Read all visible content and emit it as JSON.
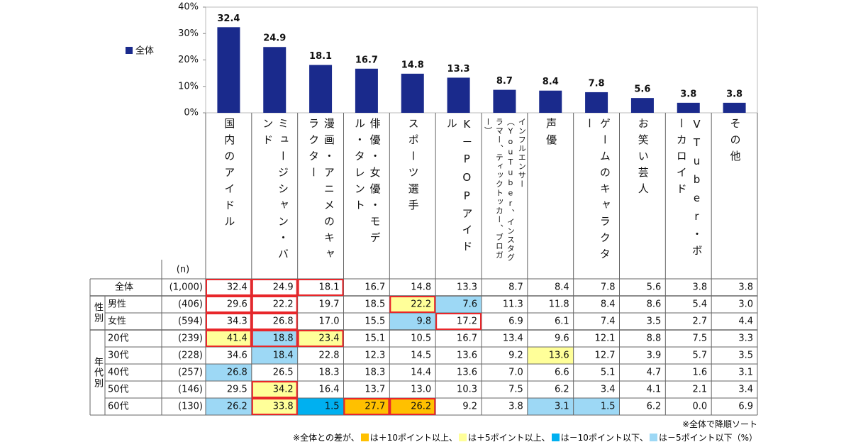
{
  "chart_data": {
    "type": "bar",
    "categories": [
      "国内のアイドル",
      "ミュージシャン・バンド",
      "漫画・アニメのキャラクター",
      "俳優・女優・モデル・タレント",
      "スポーツ選手",
      "K－POPアイドル",
      "インフルエンサー（YouTuber、インスタグラマー、ティックトッカー、ブロガー）",
      "声優",
      "ゲームのキャラクター",
      "お笑い芸人",
      "VTuber・ボーカロイド",
      "その他"
    ],
    "series": [
      {
        "name": "全体",
        "color": "#1a2a8c",
        "values": [
          32.4,
          24.9,
          18.1,
          16.7,
          14.8,
          13.3,
          8.7,
          8.4,
          7.8,
          5.6,
          3.8,
          3.8
        ]
      }
    ],
    "ylim": [
      0,
      40
    ],
    "yticks": [
      {
        "value": 0,
        "label": "0%"
      },
      {
        "value": 10,
        "label": "10%"
      },
      {
        "value": 20,
        "label": "20%"
      },
      {
        "value": 30,
        "label": "30%"
      },
      {
        "value": 40,
        "label": "40%"
      }
    ],
    "legend": "left"
  },
  "table": {
    "n_header": "(n)",
    "box_color": "#e8262a",
    "total": {
      "label": "全体",
      "n": "(1,000)",
      "values": [
        "32.4",
        "24.9",
        "18.1",
        "16.7",
        "14.8",
        "13.3",
        "8.7",
        "8.4",
        "7.8",
        "5.6",
        "3.8",
        "3.8"
      ],
      "highlight": [
        null,
        null,
        null,
        null,
        null,
        null,
        null,
        null,
        null,
        null,
        null,
        null
      ],
      "boxed": [
        true,
        true,
        true,
        false,
        false,
        false,
        false,
        false,
        false,
        false,
        false,
        false
      ]
    },
    "groups": [
      {
        "label": "性別",
        "rows": [
          {
            "label": "男性",
            "n": "(406)",
            "values": [
              "29.6",
              "22.2",
              "19.7",
              "18.5",
              "22.2",
              "7.6",
              "11.3",
              "11.8",
              "8.4",
              "8.6",
              "5.4",
              "3.0"
            ],
            "highlight": [
              null,
              null,
              null,
              null,
              "#ffff99",
              "#9dd8f5",
              null,
              null,
              null,
              null,
              null,
              null
            ],
            "boxed": [
              true,
              true,
              false,
              false,
              true,
              false,
              false,
              false,
              false,
              false,
              false,
              false
            ]
          },
          {
            "label": "女性",
            "n": "(594)",
            "values": [
              "34.3",
              "26.8",
              "17.0",
              "15.5",
              "9.8",
              "17.2",
              "6.9",
              "6.1",
              "7.4",
              "3.5",
              "2.7",
              "4.4"
            ],
            "highlight": [
              null,
              null,
              null,
              null,
              "#9dd8f5",
              null,
              null,
              null,
              null,
              null,
              null,
              null
            ],
            "boxed": [
              true,
              true,
              false,
              false,
              false,
              true,
              false,
              false,
              false,
              false,
              false,
              false
            ]
          }
        ]
      },
      {
        "label": "年代別",
        "rows": [
          {
            "label": "20代",
            "n": "(239)",
            "values": [
              "41.4",
              "18.8",
              "23.4",
              "15.1",
              "10.5",
              "16.7",
              "13.4",
              "9.6",
              "12.1",
              "8.8",
              "7.5",
              "3.3"
            ],
            "highlight": [
              "#ffff99",
              "#9dd8f5",
              "#ffff99",
              null,
              null,
              null,
              null,
              null,
              null,
              null,
              null,
              null
            ],
            "boxed": [
              true,
              true,
              true,
              false,
              false,
              false,
              false,
              false,
              false,
              false,
              false,
              false
            ]
          },
          {
            "label": "30代",
            "n": "(228)",
            "values": [
              "34.6",
              "18.4",
              "22.8",
              "12.3",
              "14.5",
              "13.6",
              "9.2",
              "13.6",
              "12.7",
              "3.9",
              "5.7",
              "3.5"
            ],
            "highlight": [
              null,
              "#9dd8f5",
              null,
              null,
              null,
              null,
              null,
              "#ffff99",
              null,
              null,
              null,
              null
            ],
            "boxed": [
              false,
              false,
              false,
              false,
              false,
              false,
              false,
              false,
              false,
              false,
              false,
              false
            ]
          },
          {
            "label": "40代",
            "n": "(257)",
            "values": [
              "26.8",
              "26.5",
              "18.3",
              "18.3",
              "14.4",
              "13.6",
              "7.0",
              "6.6",
              "5.1",
              "4.7",
              "1.6",
              "3.1"
            ],
            "highlight": [
              "#9dd8f5",
              null,
              null,
              null,
              null,
              null,
              null,
              null,
              null,
              null,
              null,
              null
            ],
            "boxed": [
              false,
              false,
              false,
              false,
              false,
              false,
              false,
              false,
              false,
              false,
              false,
              false
            ]
          },
          {
            "label": "50代",
            "n": "(146)",
            "values": [
              "29.5",
              "34.2",
              "16.4",
              "13.7",
              "13.0",
              "10.3",
              "7.5",
              "6.2",
              "3.4",
              "4.1",
              "2.1",
              "3.4"
            ],
            "highlight": [
              null,
              "#ffff99",
              null,
              null,
              null,
              null,
              null,
              null,
              null,
              null,
              null,
              null
            ],
            "boxed": [
              false,
              true,
              false,
              false,
              false,
              false,
              false,
              false,
              false,
              false,
              false,
              false
            ]
          },
          {
            "label": "60代",
            "n": "(130)",
            "values": [
              "26.2",
              "33.8",
              "1.5",
              "27.7",
              "26.2",
              "9.2",
              "3.8",
              "3.1",
              "1.5",
              "6.2",
              "0.0",
              "6.9"
            ],
            "highlight": [
              "#9dd8f5",
              "#ffff99",
              "#00b0f0",
              "#ffc000",
              "#ffc000",
              null,
              null,
              "#9dd8f5",
              "#9dd8f5",
              null,
              null,
              null
            ],
            "boxed": [
              false,
              true,
              false,
              true,
              true,
              false,
              false,
              false,
              false,
              false,
              false,
              false
            ]
          }
        ]
      }
    ],
    "sort_note": "※全体で降順ソート",
    "legend_prefix": "※全体との差が、",
    "legend_items": [
      {
        "color": "#ffc000",
        "label": "は＋10ポイント以上、"
      },
      {
        "color": "#ffff99",
        "label": "は＋5ポイント以上、"
      },
      {
        "color": "#00b0f0",
        "label": "は－10ポイント以下、"
      },
      {
        "color": "#9dd8f5",
        "label": "は－5ポイント以下"
      }
    ],
    "legend_unit": "（%）"
  }
}
